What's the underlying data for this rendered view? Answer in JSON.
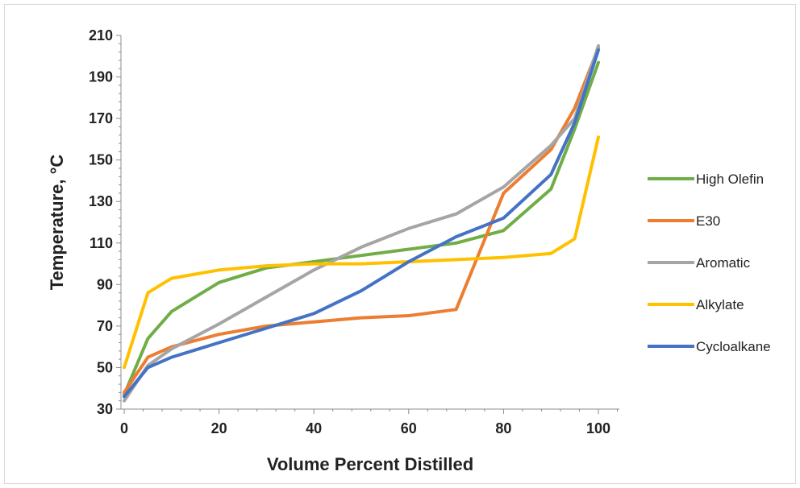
{
  "chart_data": {
    "type": "line",
    "title": "",
    "xlabel": "Volume Percent Distilled",
    "ylabel": "Temperature, °C",
    "xlim": [
      0,
      105
    ],
    "ylim": [
      30,
      210
    ],
    "xticks": [
      0,
      20,
      40,
      60,
      80,
      100
    ],
    "yticks": [
      30,
      50,
      70,
      90,
      110,
      130,
      150,
      170,
      190,
      210
    ],
    "grid": false,
    "legend_position": "right",
    "series": [
      {
        "name": "High Olefin",
        "color": "#70ad47",
        "x": [
          0,
          5,
          10,
          20,
          30,
          40,
          50,
          60,
          70,
          80,
          90,
          95,
          100
        ],
        "y": [
          37,
          64,
          77,
          91,
          98,
          101,
          104,
          107,
          110,
          116,
          136,
          165,
          197
        ]
      },
      {
        "name": "E30",
        "color": "#ed7d31",
        "x": [
          0,
          5,
          10,
          20,
          30,
          40,
          50,
          60,
          70,
          80,
          90,
          95,
          100
        ],
        "y": [
          38,
          55,
          60,
          66,
          70,
          72,
          74,
          75,
          78,
          134,
          155,
          175,
          204
        ]
      },
      {
        "name": "Aromatic",
        "color": "#a5a5a5",
        "x": [
          0,
          5,
          10,
          20,
          30,
          40,
          50,
          60,
          70,
          80,
          90,
          95,
          100
        ],
        "y": [
          34,
          51,
          59,
          71,
          84,
          97,
          108,
          117,
          124,
          137,
          157,
          170,
          205
        ]
      },
      {
        "name": "Alkylate",
        "color": "#ffc000",
        "x": [
          0,
          5,
          10,
          20,
          30,
          40,
          50,
          60,
          70,
          80,
          90,
          95,
          100
        ],
        "y": [
          50,
          86,
          93,
          97,
          99,
          100,
          100,
          101,
          102,
          103,
          105,
          112,
          161
        ]
      },
      {
        "name": "Cycloalkane",
        "color": "#4472c4",
        "x": [
          0,
          5,
          10,
          20,
          30,
          40,
          50,
          60,
          70,
          80,
          90,
          95,
          100
        ],
        "y": [
          36,
          50,
          55,
          62,
          69,
          76,
          87,
          101,
          113,
          122,
          143,
          168,
          203
        ]
      }
    ]
  }
}
